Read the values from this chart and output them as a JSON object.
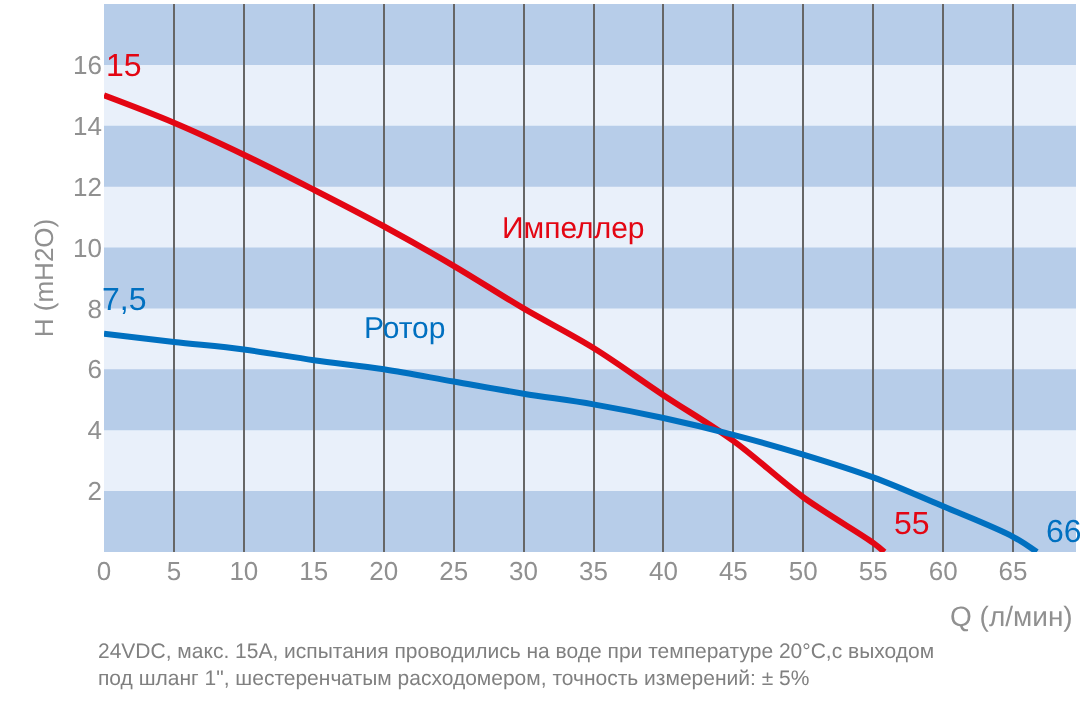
{
  "chart_data": {
    "type": "line",
    "xlabel": "Q (л/мин)",
    "ylabel": "H (mH2O)",
    "series": [
      {
        "name": "Импеллер",
        "color": "#e30613",
        "x": [
          0,
          5,
          10,
          15,
          20,
          25,
          30,
          35,
          40,
          45,
          50,
          55,
          55.8
        ],
        "values": [
          15,
          14.1,
          13.05,
          11.9,
          10.7,
          9.4,
          8.0,
          6.7,
          5.15,
          3.65,
          1.8,
          0.3,
          0
        ]
      },
      {
        "name": "Ротор",
        "color": "#0070c0",
        "x": [
          0,
          5,
          10,
          15,
          20,
          25,
          30,
          35,
          40,
          45,
          50,
          55,
          60,
          65,
          66.7
        ],
        "values": [
          7.17,
          6.9,
          6.65,
          6.3,
          6.0,
          5.6,
          5.2,
          4.85,
          4.4,
          3.85,
          3.2,
          2.45,
          1.5,
          0.5,
          0
        ]
      }
    ],
    "xlim": [
      0,
      69.5
    ],
    "ylim": [
      0,
      18
    ],
    "xticks": [
      0,
      5,
      10,
      15,
      20,
      25,
      30,
      35,
      40,
      45,
      50,
      55,
      60,
      65
    ],
    "yticks": [
      2,
      4,
      6,
      8,
      10,
      12,
      14,
      16
    ],
    "bands": [
      {
        "axis": "y",
        "from": 0,
        "to": 2,
        "color": "#b7cde9"
      },
      {
        "axis": "y",
        "from": 4,
        "to": 6,
        "color": "#b7cde9"
      },
      {
        "axis": "y",
        "from": 8,
        "to": 10,
        "color": "#b7cde9"
      },
      {
        "axis": "y",
        "from": 12,
        "to": 14,
        "color": "#b7cde9"
      },
      {
        "axis": "y",
        "from": 16,
        "to": 18,
        "color": "#b7cde9"
      }
    ],
    "grid": "x",
    "legend": false,
    "marker": "none",
    "line_style": "solid",
    "annotations": [
      {
        "text": "15",
        "x": 0,
        "y": 15
      },
      {
        "text": "7,5",
        "x": 0,
        "y": 7.17
      },
      {
        "text": "55",
        "x": 55.8,
        "y": 0
      },
      {
        "text": "66",
        "x": 66.7,
        "y": 0
      },
      "24VDC, макс. 15А, испытания проводились на воде при температуре 20°С,с выходом под шланг 1\", шестеренчатым расходомером, точность измерений: ± 5%"
    ]
  }
}
